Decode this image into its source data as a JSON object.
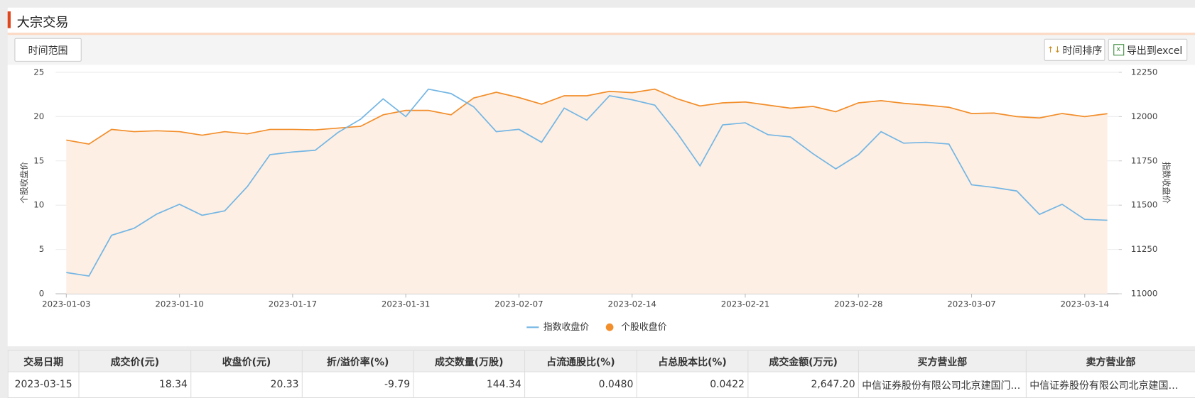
{
  "header": {
    "title": "大宗交易"
  },
  "toolbar": {
    "time_range": "时间范围",
    "sort": "时间排序",
    "export": "导出到excel"
  },
  "chart_data": {
    "type": "line",
    "categories": [
      "2023-01-03",
      null,
      null,
      null,
      null,
      "2023-01-10",
      null,
      null,
      null,
      null,
      "2023-01-17",
      null,
      null,
      null,
      null,
      "2023-01-31",
      null,
      null,
      null,
      null,
      "2023-02-07",
      null,
      null,
      null,
      null,
      "2023-02-14",
      null,
      null,
      null,
      null,
      "2023-02-21",
      null,
      null,
      null,
      null,
      "2023-02-28",
      null,
      null,
      null,
      null,
      "2023-03-07",
      null,
      null,
      null,
      null,
      "2023-03-14",
      null
    ],
    "series": [
      {
        "name": "指数收盘价",
        "color": "#74b6e4",
        "axis": "y2",
        "values": [
          11120,
          11100,
          11330,
          11370,
          11450,
          11505,
          11443,
          11468,
          11605,
          11785,
          11800,
          11810,
          11910,
          11985,
          12100,
          12000,
          12155,
          12130,
          12055,
          11915,
          11928,
          11855,
          12048,
          11980,
          12118,
          12095,
          12065,
          11905,
          11722,
          11953,
          11965,
          11898,
          11885,
          11790,
          11705,
          11785,
          11915,
          11850,
          11855,
          11845,
          11615,
          11600,
          11580,
          11448,
          11505,
          11420,
          11415
        ]
      },
      {
        "name": "个股收盘价",
        "color": "#f28e2b",
        "area_color": "#fdefe4",
        "values": [
          17.35,
          16.9,
          18.55,
          18.3,
          18.4,
          18.3,
          17.9,
          18.3,
          18.05,
          18.55,
          18.55,
          18.5,
          18.7,
          18.9,
          20.2,
          20.7,
          20.7,
          20.2,
          22.1,
          22.75,
          22.15,
          21.4,
          22.35,
          22.35,
          22.85,
          22.7,
          23.1,
          22.0,
          21.2,
          21.55,
          21.65,
          21.3,
          20.95,
          21.15,
          20.55,
          21.55,
          21.8,
          21.5,
          21.3,
          21.05,
          20.35,
          20.4,
          20.0,
          19.85,
          20.35,
          20.0,
          20.33
        ]
      }
    ],
    "ylabel": "个股收盘价",
    "y2label": "指数收盘价",
    "ylim": [
      0,
      25
    ],
    "yticks": [
      0,
      5,
      10,
      15,
      20,
      25
    ],
    "y2lim": [
      11000,
      12250
    ],
    "y2ticks": [
      11000,
      11250,
      11500,
      11750,
      12000,
      12250
    ],
    "grid": true,
    "legend": "bottom"
  },
  "table": {
    "columns": [
      "交易日期",
      "成交价(元)",
      "收盘价(元)",
      "折/溢价率(%)",
      "成交数量(万股)",
      "占流通股比(%)",
      "占总股本比(%)",
      "成交金额(万元)",
      "买方营业部",
      "卖方营业部"
    ],
    "rows": [
      [
        "2023-03-15",
        "18.34",
        "20.33",
        "-9.79",
        "144.34",
        "0.0480",
        "0.0422",
        "2,647.20",
        "中信证券股份有限公司北京建国门…",
        "中信证券股份有限公司北京建国…"
      ]
    ]
  }
}
